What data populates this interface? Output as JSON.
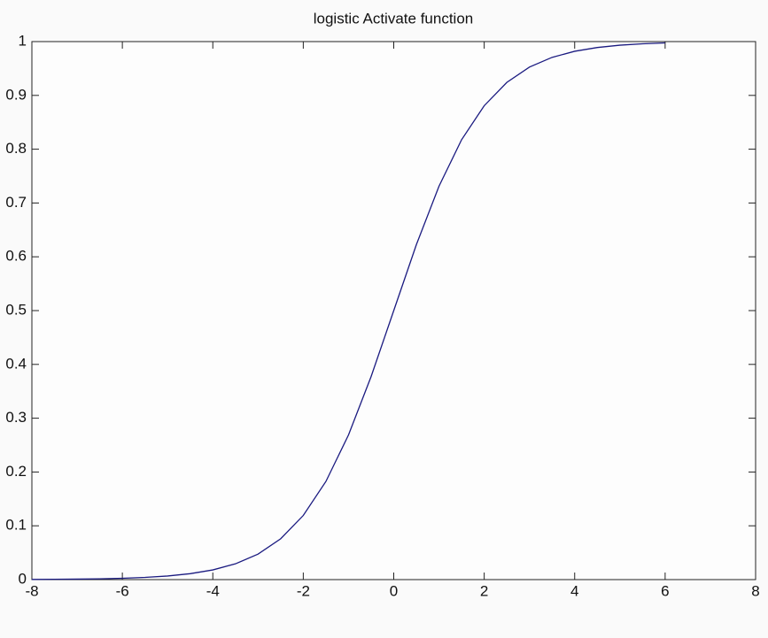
{
  "chart_data": {
    "type": "line",
    "title": "logistic Activate function",
    "x": [
      -8,
      -7.5,
      -7,
      -6.5,
      -6,
      -5.5,
      -5,
      -4.5,
      -4,
      -3.5,
      -3,
      -2.5,
      -2,
      -1.5,
      -1,
      -0.5,
      0,
      0.5,
      1,
      1.5,
      2,
      2.5,
      3,
      3.5,
      4,
      4.5,
      5,
      5.5,
      6
    ],
    "series": [
      {
        "color": "#1a1a80",
        "values": [
          0.0003,
          0.0006,
          0.0009,
          0.0015,
          0.0025,
          0.0041,
          0.0067,
          0.011,
          0.018,
          0.0293,
          0.0474,
          0.0759,
          0.1192,
          0.1824,
          0.2689,
          0.3775,
          0.5,
          0.6225,
          0.7311,
          0.8176,
          0.8808,
          0.9241,
          0.9526,
          0.9707,
          0.982,
          0.989,
          0.9933,
          0.9959,
          0.9975
        ]
      }
    ],
    "xlim": [
      -8,
      8
    ],
    "xticks": [
      -8,
      -6,
      -4,
      -2,
      0,
      2,
      4,
      6,
      8
    ],
    "ylim": [
      0,
      1
    ],
    "yticks": [
      0,
      0.1,
      0.2,
      0.3,
      0.4,
      0.5,
      0.6,
      0.7,
      0.8,
      0.9,
      1
    ],
    "grid": false
  }
}
